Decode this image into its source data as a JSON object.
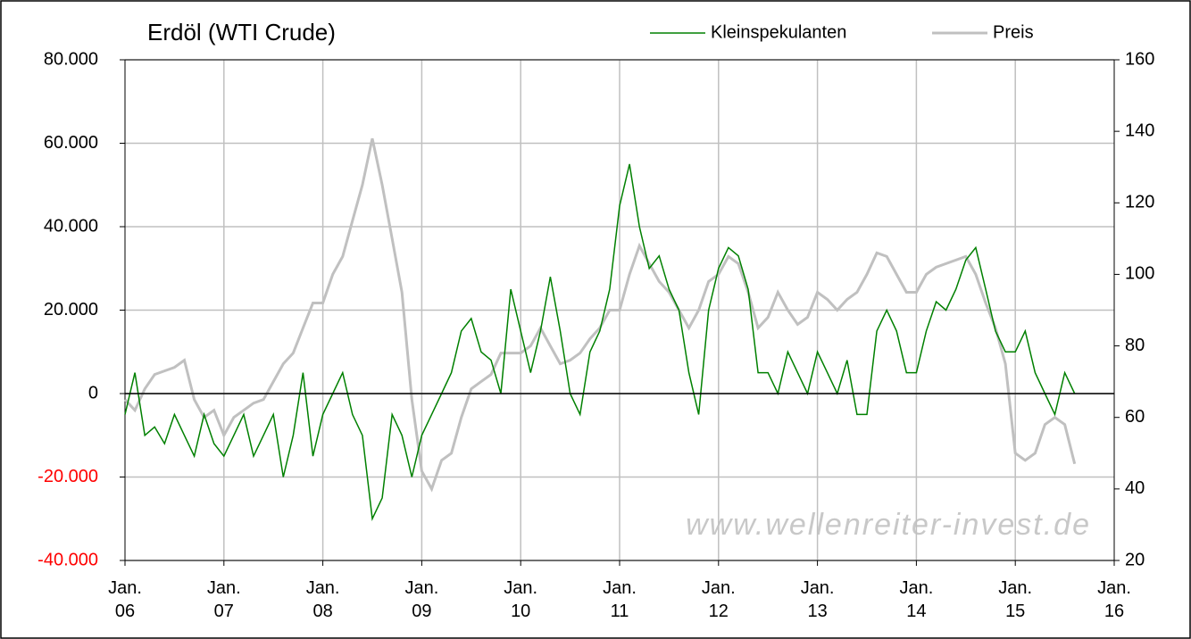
{
  "chart_data": {
    "type": "line",
    "title": "Erdöl (WTI Crude)",
    "watermark": "www.wellenreiter-invest.de",
    "legend": "top-right",
    "zero_line": true,
    "grid": true,
    "negative_tick_color": "#ff0000",
    "x": [
      2006.0,
      2006.1,
      2006.2,
      2006.3,
      2006.4,
      2006.5,
      2006.6,
      2006.7,
      2006.8,
      2006.9,
      2007.0,
      2007.1,
      2007.2,
      2007.3,
      2007.4,
      2007.5,
      2007.6,
      2007.7,
      2007.8,
      2007.9,
      2008.0,
      2008.1,
      2008.2,
      2008.3,
      2008.4,
      2008.5,
      2008.6,
      2008.7,
      2008.8,
      2008.9,
      2009.0,
      2009.1,
      2009.2,
      2009.3,
      2009.4,
      2009.5,
      2009.6,
      2009.7,
      2009.8,
      2009.9,
      2010.0,
      2010.1,
      2010.2,
      2010.3,
      2010.4,
      2010.5,
      2010.6,
      2010.7,
      2010.8,
      2010.9,
      2011.0,
      2011.1,
      2011.2,
      2011.3,
      2011.4,
      2011.5,
      2011.6,
      2011.7,
      2011.8,
      2011.9,
      2012.0,
      2012.1,
      2012.2,
      2012.3,
      2012.4,
      2012.5,
      2012.6,
      2012.7,
      2012.8,
      2012.9,
      2013.0,
      2013.1,
      2013.2,
      2013.3,
      2013.4,
      2013.5,
      2013.6,
      2013.7,
      2013.8,
      2013.9,
      2014.0,
      2014.1,
      2014.2,
      2014.3,
      2014.4,
      2014.5,
      2014.6,
      2014.7,
      2014.8,
      2014.9,
      2015.0,
      2015.1,
      2015.2,
      2015.3,
      2015.4,
      2015.5,
      2015.6
    ],
    "xlim": [
      2006,
      2016
    ],
    "xticks": [
      {
        "value": 2006,
        "label": "Jan.\n06"
      },
      {
        "value": 2007,
        "label": "Jan.\n07"
      },
      {
        "value": 2008,
        "label": "Jan.\n08"
      },
      {
        "value": 2009,
        "label": "Jan.\n09"
      },
      {
        "value": 2010,
        "label": "Jan.\n10"
      },
      {
        "value": 2011,
        "label": "Jan.\n11"
      },
      {
        "value": 2012,
        "label": "Jan.\n12"
      },
      {
        "value": 2013,
        "label": "Jan.\n13"
      },
      {
        "value": 2014,
        "label": "Jan.\n14"
      },
      {
        "value": 2015,
        "label": "Jan.\n15"
      },
      {
        "value": 2016,
        "label": "Jan.\n16"
      }
    ],
    "ylim": [
      -40000,
      80000
    ],
    "yticks": [
      {
        "value": -40000,
        "label": "-40.000"
      },
      {
        "value": -20000,
        "label": "-20.000"
      },
      0,
      {
        "value": 20000,
        "label": "20.000"
      },
      {
        "value": 40000,
        "label": "40.000"
      },
      {
        "value": 60000,
        "label": "60.000"
      },
      {
        "value": 80000,
        "label": "80.000"
      }
    ],
    "y2lim": [
      20,
      160
    ],
    "y2ticks": [
      20,
      40,
      60,
      80,
      100,
      120,
      140,
      160
    ],
    "series": [
      {
        "name": "Kleinspekulanten",
        "color": "#008000",
        "values": [
          -5000,
          5000,
          -10000,
          -8000,
          -12000,
          -5000,
          -10000,
          -15000,
          -5000,
          -12000,
          -15000,
          -10000,
          -5000,
          -15000,
          -10000,
          -5000,
          -20000,
          -10000,
          5000,
          -15000,
          -5000,
          0,
          5000,
          -5000,
          -10000,
          -30000,
          -25000,
          -5000,
          -10000,
          -20000,
          -10000,
          -5000,
          0,
          5000,
          15000,
          18000,
          10000,
          8000,
          0,
          25000,
          15000,
          5000,
          15000,
          28000,
          15000,
          0,
          -5000,
          10000,
          15000,
          25000,
          45000,
          55000,
          40000,
          30000,
          33000,
          25000,
          20000,
          5000,
          -5000,
          20000,
          30000,
          35000,
          33000,
          25000,
          5000,
          5000,
          0,
          10000,
          5000,
          0,
          10000,
          5000,
          0,
          8000,
          -5000,
          -5000,
          15000,
          20000,
          15000,
          5000,
          5000,
          15000,
          22000,
          20000,
          25000,
          32000,
          35000,
          25000,
          15000,
          10000,
          10000,
          15000,
          5000,
          0,
          -5000,
          5000,
          0
        ]
      },
      {
        "name": "Preis",
        "color": "#c0c0c0",
        "axis": "y2",
        "values": [
          65,
          62,
          68,
          72,
          73,
          74,
          76,
          65,
          60,
          62,
          55,
          60,
          62,
          64,
          65,
          70,
          75,
          78,
          85,
          92,
          92,
          100,
          105,
          115,
          125,
          138,
          125,
          110,
          95,
          65,
          45,
          40,
          48,
          50,
          60,
          68,
          70,
          72,
          78,
          78,
          78,
          80,
          85,
          80,
          75,
          76,
          78,
          82,
          85,
          90,
          90,
          100,
          108,
          103,
          98,
          95,
          90,
          85,
          90,
          98,
          100,
          105,
          103,
          95,
          85,
          88,
          95,
          90,
          86,
          88,
          95,
          93,
          90,
          93,
          95,
          100,
          106,
          105,
          100,
          95,
          95,
          100,
          102,
          103,
          104,
          105,
          100,
          92,
          85,
          75,
          50,
          48,
          50,
          58,
          60,
          58,
          47
        ]
      }
    ]
  }
}
